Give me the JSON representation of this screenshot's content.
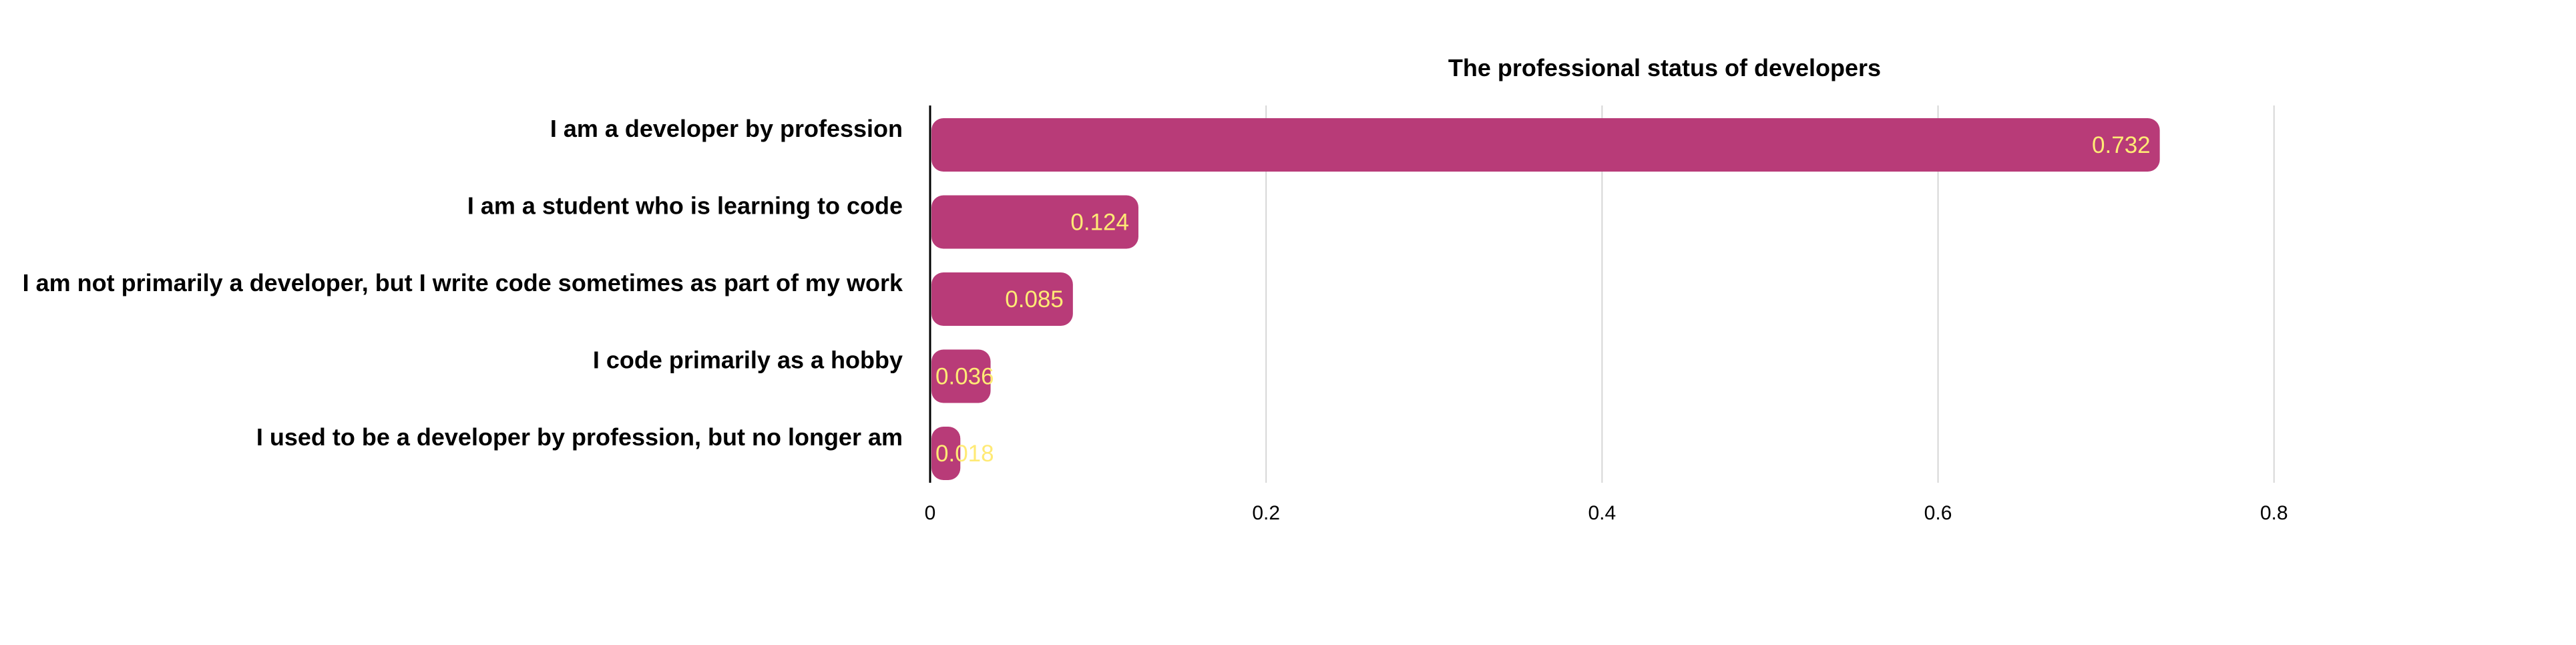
{
  "chart_data": {
    "type": "bar",
    "orientation": "horizontal",
    "title": "The professional status of developers",
    "xlabel": "",
    "ylabel": "",
    "categories": [
      "I am a developer by profession",
      "I am a student who is learning to code",
      "I am not primarily a developer, but I write code sometimes as part of my work",
      "I code primarily as a hobby",
      "I used to be a developer by profession, but no longer am"
    ],
    "values": [
      0.732,
      0.124,
      0.085,
      0.036,
      0.018
    ],
    "data_labels": [
      "0.732",
      "0.124",
      "0.085",
      "0.036",
      "0.018"
    ],
    "xlim": [
      0,
      0.88
    ],
    "xticks": [
      0,
      0.2,
      0.4,
      0.6,
      0.8
    ],
    "xtick_labels": [
      "0",
      "0.2",
      "0.4",
      "0.6",
      "0.8"
    ],
    "grid": "vertical",
    "legend": "none",
    "colors": {
      "bar": "#b83b78",
      "data_label": "#ffea75",
      "grid": "#d6d6d6",
      "axis": "#000000",
      "text": "#000000",
      "background": "#ffffff"
    }
  }
}
